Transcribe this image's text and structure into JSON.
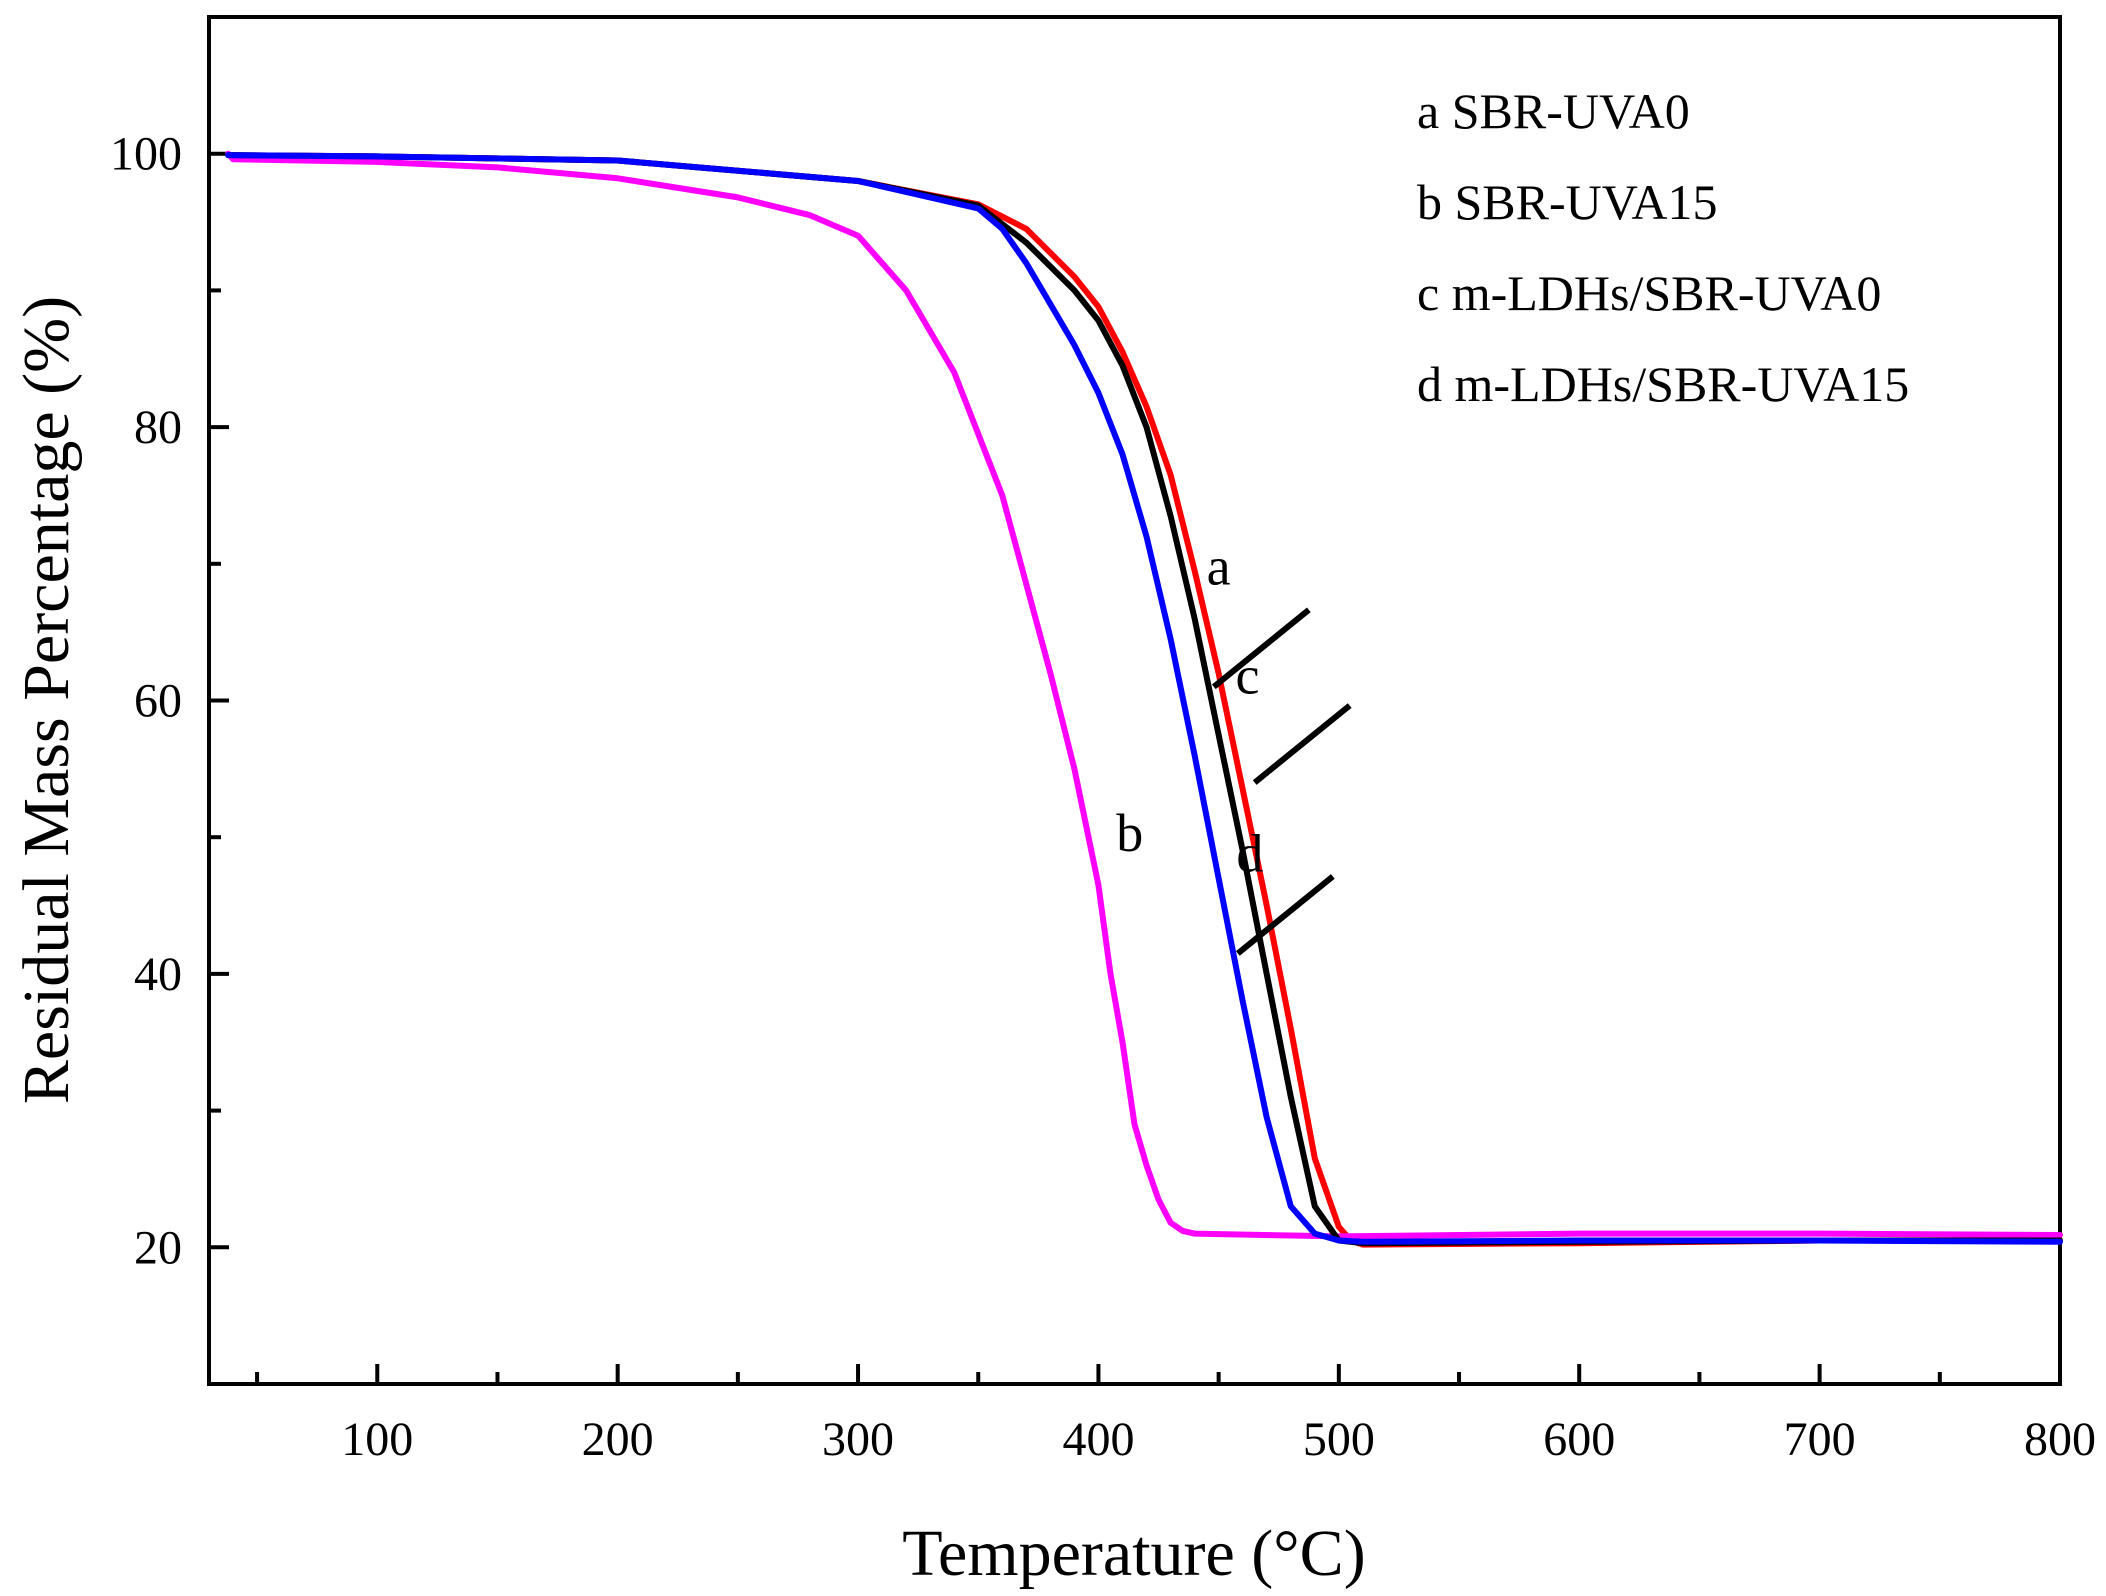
{
  "chart_data": {
    "type": "line",
    "title": "",
    "xlabel": "Temperature  (°C)",
    "ylabel": "Residual Mass Percentage  (%)",
    "xlim": [
      30,
      800
    ],
    "ylim": [
      10,
      110
    ],
    "xticks": [
      100,
      200,
      300,
      400,
      500,
      600,
      700,
      800
    ],
    "xtick_labels": [
      "100",
      "200",
      "300",
      "400",
      "500",
      "600",
      "700",
      "800"
    ],
    "yticks": [
      20,
      40,
      60,
      80,
      100
    ],
    "ytick_labels": [
      "20",
      "40",
      "60",
      "80",
      "100"
    ],
    "grid": false,
    "legend": {
      "position": "top-right",
      "entries": [
        "a SBR-UVA0",
        "b SBR-UVA15",
        "c m-LDHs/SBR-UVA0",
        "d m-LDHs/SBR-UVA15"
      ]
    },
    "series": [
      {
        "name": "a SBR-UVA0",
        "letter": "a",
        "color": "#ff0000",
        "x": [
          38,
          100,
          200,
          300,
          350,
          370,
          390,
          400,
          410,
          420,
          430,
          440,
          450,
          460,
          470,
          480,
          490,
          500,
          505,
          510,
          600,
          700,
          800
        ],
        "y": [
          99.9,
          99.8,
          99.5,
          98.0,
          96.3,
          94.5,
          91.0,
          88.8,
          85.5,
          81.5,
          76.5,
          69.5,
          62.0,
          53.5,
          45.0,
          36.0,
          26.5,
          21.5,
          20.5,
          20.2,
          20.3,
          20.5,
          20.5
        ]
      },
      {
        "name": "b SBR-UVA15",
        "letter": "b",
        "color": "#ff00ff",
        "x": [
          38,
          40,
          100,
          150,
          200,
          250,
          280,
          300,
          320,
          340,
          360,
          380,
          390,
          400,
          405,
          410,
          415,
          420,
          425,
          430,
          435,
          440,
          500,
          600,
          700,
          800
        ],
        "y": [
          100.0,
          99.6,
          99.4,
          99.0,
          98.2,
          96.8,
          95.5,
          94.0,
          90.0,
          84.0,
          75.0,
          62.0,
          55.0,
          46.5,
          40.0,
          35.0,
          29.0,
          26.0,
          23.5,
          21.8,
          21.2,
          21.0,
          20.8,
          21.0,
          21.0,
          20.9
        ]
      },
      {
        "name": "c m-LDHs/SBR-UVA0",
        "letter": "c",
        "color": "#000000",
        "x": [
          38,
          100,
          200,
          300,
          350,
          370,
          390,
          400,
          410,
          420,
          430,
          440,
          450,
          460,
          470,
          480,
          490,
          500,
          510,
          600,
          700,
          800
        ],
        "y": [
          99.9,
          99.8,
          99.5,
          98.0,
          96.2,
          93.5,
          90.0,
          87.8,
          84.5,
          80.0,
          73.5,
          66.0,
          57.5,
          49.0,
          40.0,
          31.0,
          23.0,
          20.5,
          20.3,
          20.4,
          20.5,
          20.5
        ]
      },
      {
        "name": "d m-LDHs/SBR-UVA15",
        "letter": "d",
        "color": "#0000ff",
        "x": [
          38,
          100,
          200,
          300,
          350,
          360,
          370,
          380,
          390,
          400,
          410,
          420,
          430,
          440,
          450,
          460,
          470,
          480,
          490,
          500,
          510,
          600,
          700,
          800
        ],
        "y": [
          99.9,
          99.8,
          99.5,
          98.0,
          96.0,
          94.5,
          92.0,
          89.0,
          86.0,
          82.5,
          78.0,
          72.0,
          64.5,
          56.0,
          47.0,
          38.0,
          29.5,
          23.0,
          21.0,
          20.5,
          20.4,
          20.5,
          20.5,
          20.4
        ]
      }
    ],
    "annotations": [
      {
        "text": "a",
        "series": "a SBR-UVA0",
        "x": 448,
        "y": 61,
        "label_x": 450,
        "label_y": 68.5
      },
      {
        "text": "c",
        "series": "c m-LDHs/SBR-UVA0",
        "x": 465,
        "y": 54,
        "label_x": 462,
        "label_y": 60.5
      },
      {
        "text": "d",
        "series": "d m-LDHs/SBR-UVA15",
        "x": 458,
        "y": 41.5,
        "label_x": 463,
        "label_y": 47.5
      },
      {
        "text": "b",
        "series": "b SBR-UVA15",
        "x": 405,
        "y": 49,
        "label_x": 413,
        "label_y": 49
      }
    ]
  }
}
